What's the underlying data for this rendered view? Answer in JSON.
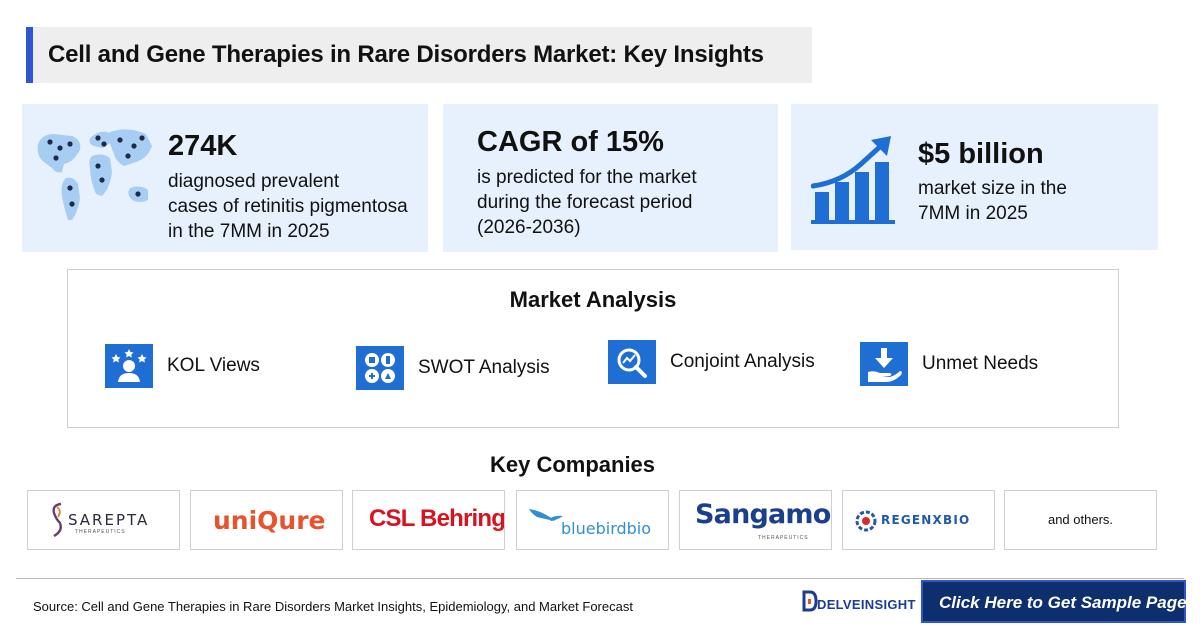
{
  "title": "Cell and Gene Therapies in Rare Disorders Market: Key Insights",
  "stats": [
    {
      "value": "274K",
      "lines": [
        "diagnosed prevalent",
        "cases of retinitis pigmentosa",
        "in the 7MM in 2025"
      ],
      "icon": "world-map-icon"
    },
    {
      "value": "CAGR of 15%",
      "lines": [
        "is predicted for the market",
        "during the forecast period",
        "(2026-2036)"
      ]
    },
    {
      "value": "$5 billion",
      "lines": [
        "market size in the",
        "7MM in 2025"
      ],
      "icon": "growth-chart-icon"
    }
  ],
  "analysis": {
    "title": "Market Analysis",
    "items": [
      {
        "label": "KOL Views",
        "icon": "kol-person-icon"
      },
      {
        "label": "SWOT Analysis",
        "icon": "swot-grid-icon"
      },
      {
        "label": "Conjoint Analysis",
        "icon": "magnifier-chart-icon"
      },
      {
        "label": "Unmet Needs",
        "icon": "hand-download-icon"
      }
    ]
  },
  "companies": {
    "title": "Key Companies",
    "logos": [
      {
        "name": "SAREPTA",
        "sub": "THERAPEUTICS"
      },
      {
        "name": "uniQure"
      },
      {
        "name": "CSL Behring"
      },
      {
        "name": "bluebirdbio"
      },
      {
        "name": "Sangamo",
        "sub": "THERAPEUTICS"
      },
      {
        "name": "REGENXBIO"
      },
      {
        "name": "and others."
      }
    ]
  },
  "footer": {
    "source": "Source: Cell and Gene Therapies in Rare Disorders Market Insights, Epidemiology, and Market Forecast",
    "brand": "DELVEINSIGHT",
    "cta": "Click Here to Get Sample Page"
  },
  "colors": {
    "accent": "#2f55d4",
    "card_bg": "#e7f1fd",
    "icon_blue": "#1f6ed4",
    "cta_bg": "#0e2f6e"
  }
}
